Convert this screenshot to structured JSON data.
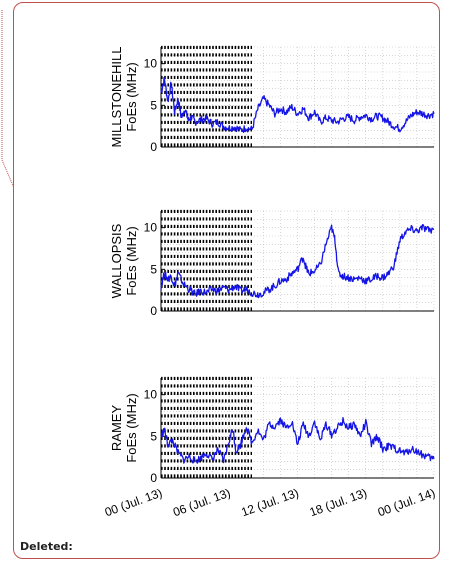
{
  "annotation": {
    "label": "Deleted:"
  },
  "colors": {
    "series": "#1414e6",
    "balloon_border": "#c0504d",
    "grid": "#bfbfbf"
  },
  "chart_data": [
    {
      "type": "line",
      "ylabel_station": "MILLSTONEHILL",
      "ylabel_quantity": "FoEs (MHz)",
      "xlim": [
        0,
        24
      ],
      "ylim": [
        0,
        12
      ],
      "yticks": [
        0,
        5,
        10
      ],
      "grid": true,
      "shaded_interval": [
        0,
        8
      ],
      "series": [
        {
          "x": [
            0,
            0.3,
            0.6,
            0.9,
            1.2,
            1.5,
            1.8,
            2.1,
            2.4,
            2.7,
            3.0,
            3.5,
            4,
            4.5,
            5,
            5.5,
            6,
            6.5,
            7,
            7.5,
            8,
            8.5,
            9,
            9.5,
            10,
            10.5,
            11,
            11.5,
            12,
            12.5,
            13,
            13.5,
            14,
            14.5,
            15,
            15.5,
            16,
            16.5,
            17,
            17.5,
            18,
            18.5,
            19,
            19.5,
            20,
            20.5,
            21,
            21.5,
            22,
            22.5,
            23,
            23.5,
            24
          ],
          "y": [
            6.5,
            8.2,
            5.5,
            7.6,
            4.2,
            5.8,
            3.5,
            4.6,
            3.2,
            3.6,
            3.0,
            3.3,
            3.4,
            2.8,
            3.0,
            2.5,
            2.3,
            2.4,
            2.0,
            2.3,
            2.1,
            4.5,
            5.8,
            5.0,
            4.0,
            4.6,
            4.2,
            4.8,
            4.0,
            4.6,
            3.5,
            4.2,
            3.0,
            3.5,
            3.2,
            3.0,
            3.4,
            3.6,
            3.2,
            3.6,
            3.8,
            3.4,
            3.7,
            3.5,
            3.0,
            2.5,
            2.2,
            3.0,
            3.8,
            4.2,
            4.0,
            3.8,
            4.0
          ]
        }
      ]
    },
    {
      "type": "line",
      "ylabel_station": "WALLOPSIS",
      "ylabel_quantity": "FoEs (MHz)",
      "xlim": [
        0,
        24
      ],
      "ylim": [
        0,
        12
      ],
      "yticks": [
        0,
        5,
        10
      ],
      "grid": true,
      "shaded_interval": [
        0,
        8
      ],
      "series": [
        {
          "x": [
            0,
            0.3,
            0.6,
            0.9,
            1.2,
            1.5,
            2,
            2.5,
            3,
            3.5,
            4,
            4.5,
            5,
            5.5,
            6,
            6.5,
            7,
            7.5,
            8,
            8.5,
            9,
            9.5,
            10,
            10.5,
            11,
            11.5,
            12,
            12.5,
            12.8,
            13,
            13.5,
            14,
            14.5,
            15,
            15.3,
            15.6,
            16,
            16.5,
            17,
            17.5,
            18,
            18.5,
            19,
            19.5,
            20,
            20.5,
            21,
            21.5,
            22,
            22.5,
            23,
            23.5,
            24
          ],
          "y": [
            3.0,
            4.5,
            3.8,
            4.2,
            3.0,
            4.5,
            3.2,
            2.6,
            2.0,
            2.4,
            2.2,
            2.6,
            2.4,
            2.8,
            2.5,
            3.0,
            2.4,
            2.6,
            2.2,
            2.0,
            2.2,
            2.6,
            3.0,
            3.6,
            3.8,
            4.5,
            5.0,
            6.5,
            5.0,
            4.5,
            4.8,
            5.5,
            8.0,
            10.0,
            8.5,
            4.5,
            4.2,
            4.0,
            3.8,
            4.0,
            3.6,
            3.8,
            4.2,
            4.0,
            4.5,
            5.5,
            8.5,
            9.5,
            9.8,
            9.6,
            10.0,
            9.7,
            9.8
          ]
        }
      ]
    },
    {
      "type": "line",
      "ylabel_station": "RAMEY",
      "ylabel_quantity": "FoEs (MHz)",
      "xlim": [
        0,
        24
      ],
      "ylim": [
        0,
        12
      ],
      "yticks": [
        0,
        5,
        10
      ],
      "grid": true,
      "shaded_interval": [
        0,
        8
      ],
      "series": [
        {
          "x": [
            0,
            0.3,
            0.6,
            1.0,
            1.5,
            2,
            2.5,
            3,
            3.5,
            4,
            4.5,
            5,
            5.5,
            6,
            6.3,
            6.6,
            7,
            7.5,
            8,
            8.5,
            9,
            9.5,
            10,
            10.5,
            11,
            11.5,
            12,
            12.5,
            13,
            13.5,
            14,
            14.5,
            15,
            15.5,
            16,
            16.5,
            17,
            17.5,
            18,
            18.5,
            19,
            19.5,
            20,
            20.5,
            21,
            21.5,
            22,
            22.5,
            23,
            23.5,
            24
          ],
          "y": [
            5.0,
            5.8,
            4.0,
            4.5,
            3.0,
            2.2,
            2.6,
            2.0,
            2.4,
            3.0,
            2.2,
            3.4,
            2.0,
            4.5,
            6.0,
            3.2,
            4.0,
            6.2,
            4.2,
            5.8,
            4.5,
            6.5,
            6.2,
            7.0,
            6.0,
            6.8,
            4.0,
            6.5,
            5.0,
            6.8,
            4.5,
            6.5,
            5.2,
            6.0,
            6.8,
            6.0,
            6.5,
            5.0,
            6.6,
            4.0,
            5.0,
            3.5,
            3.8,
            3.6,
            3.2,
            3.0,
            3.5,
            3.2,
            2.8,
            2.5,
            2.3
          ]
        }
      ]
    }
  ],
  "xaxis": {
    "tick_labels": [
      "00 (Jul. 13)",
      "06 (Jul. 13)",
      "12 (Jul. 13)",
      "18 (Jul. 13)",
      "00 (Jul. 14)"
    ]
  }
}
